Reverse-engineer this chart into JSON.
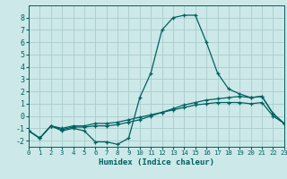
{
  "xlabel": "Humidex (Indice chaleur)",
  "xlim": [
    0,
    23
  ],
  "ylim": [
    -2.5,
    9.0
  ],
  "bg_color": "#cce8e8",
  "grid_color": "#aacccc",
  "line_color": "#006060",
  "series": [
    {
      "x": [
        0,
        1,
        2,
        3,
        4,
        5,
        6,
        7,
        8,
        9,
        10,
        11,
        12,
        13,
        14,
        15,
        16,
        17,
        18,
        19,
        20,
        21,
        22,
        23
      ],
      "y": [
        -1.2,
        -1.8,
        -0.8,
        -1.2,
        -1.0,
        -1.2,
        -2.1,
        -2.1,
        -2.3,
        -1.8,
        1.5,
        3.5,
        7.0,
        8.0,
        8.2,
        8.2,
        6.0,
        3.5,
        2.2,
        1.8,
        1.5,
        1.6,
        0.2,
        -0.6
      ]
    },
    {
      "x": [
        0,
        1,
        2,
        3,
        4,
        5,
        6,
        7,
        8,
        9,
        10,
        11,
        12,
        13,
        14,
        15,
        16,
        17,
        18,
        19,
        20,
        21,
        22,
        23
      ],
      "y": [
        -1.2,
        -1.8,
        -0.8,
        -1.1,
        -0.9,
        -0.9,
        -0.8,
        -0.8,
        -0.7,
        -0.5,
        -0.3,
        0.0,
        0.3,
        0.6,
        0.9,
        1.1,
        1.3,
        1.4,
        1.5,
        1.6,
        1.5,
        1.6,
        0.2,
        -0.6
      ]
    },
    {
      "x": [
        0,
        1,
        2,
        3,
        4,
        5,
        6,
        7,
        8,
        9,
        10,
        11,
        12,
        13,
        14,
        15,
        16,
        17,
        18,
        19,
        20,
        21,
        22,
        23
      ],
      "y": [
        -1.2,
        -1.8,
        -0.8,
        -1.0,
        -0.8,
        -0.8,
        -0.6,
        -0.6,
        -0.5,
        -0.3,
        -0.1,
        0.1,
        0.3,
        0.5,
        0.7,
        0.9,
        1.0,
        1.1,
        1.1,
        1.1,
        1.0,
        1.1,
        0.0,
        -0.6
      ]
    }
  ],
  "yticks": [
    -2,
    -1,
    0,
    1,
    2,
    3,
    4,
    5,
    6,
    7,
    8
  ],
  "xticks": [
    0,
    1,
    2,
    3,
    4,
    5,
    6,
    7,
    8,
    9,
    10,
    11,
    12,
    13,
    14,
    15,
    16,
    17,
    18,
    19,
    20,
    21,
    22,
    23
  ],
  "xticklabels": [
    "0",
    "1",
    "2",
    "3",
    "4",
    "5",
    "6",
    "7",
    "8",
    "9",
    "10",
    "11",
    "12",
    "13",
    "14",
    "15",
    "16",
    "17",
    "18",
    "19",
    "20",
    "21",
    "22",
    "23"
  ]
}
